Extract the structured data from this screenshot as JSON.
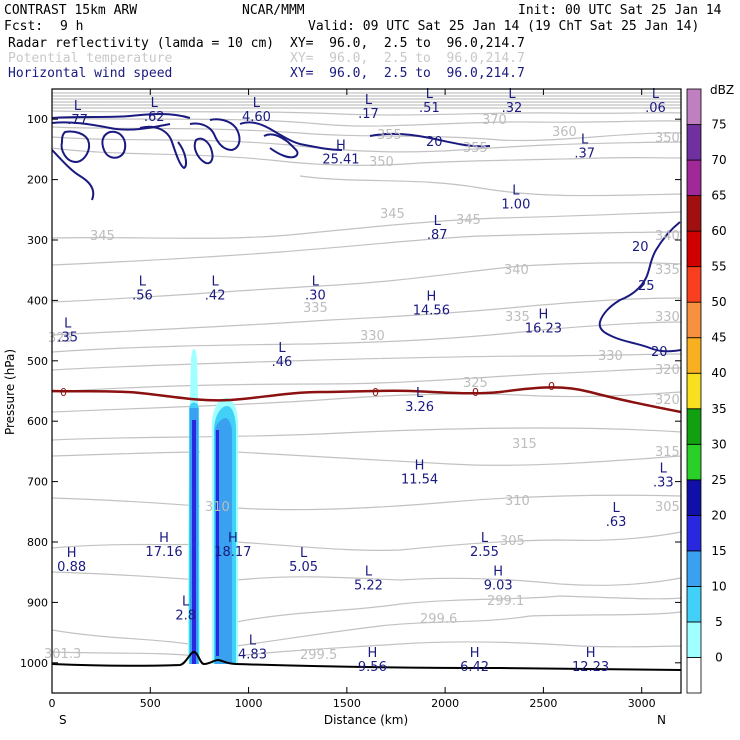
{
  "header": {
    "title": "CONTRAST 15km ARW",
    "org": "NCAR/MMM",
    "init": "Init: 00 UTC Sat 25 Jan 14",
    "fcst_label": "Fcst:",
    "fcst_value": "9 h",
    "valid": "Valid: 09 UTC Sat 25 Jan 14 (19 ChT Sat 25 Jan 14)",
    "fields": [
      {
        "name": "Radar reflectivity (lamda = 10 cm)",
        "xy": "XY=  96.0,  2.5 to  96.0,214.7"
      },
      {
        "name": "Potential temperature",
        "xy": "XY=  96.0,  2.5 to  96.0,214.7"
      },
      {
        "name": "Horizontal wind speed",
        "xy": "XY=  96.0,  2.5 to  96.0,214.7"
      }
    ]
  },
  "chart_data": {
    "type": "cross-section",
    "xlabel": "Distance (km)",
    "ylabel": "Pressure (hPa)",
    "xlim": [
      0,
      3200
    ],
    "ylim": [
      1050,
      50
    ],
    "x_ticks": [
      0,
      500,
      1000,
      1500,
      2000,
      2500,
      3000
    ],
    "y_ticks": [
      100,
      200,
      300,
      400,
      500,
      600,
      700,
      800,
      900,
      1000
    ],
    "x_end_labels": {
      "left": "S",
      "right": "N"
    },
    "colorbar": {
      "unit": "dBZ",
      "levels": [
        "0",
        "5",
        "10",
        "15",
        "20",
        "25",
        "30",
        "35",
        "40",
        "45",
        "50",
        "55",
        "60",
        "65",
        "70",
        "75"
      ],
      "colors": [
        "#ffffff",
        "#a0ffff",
        "#40d0f8",
        "#3aa0f0",
        "#2828e0",
        "#1010a8",
        "#28d028",
        "#10a010",
        "#f8e020",
        "#f8b020",
        "#f89040",
        "#f84020",
        "#d00000",
        "#a01010",
        "#a02898",
        "#7030a0",
        "#c080c0"
      ]
    },
    "potential_temperature_labels": [
      "370",
      "360",
      "355",
      "355",
      "350",
      "350",
      "345",
      "345",
      "345",
      "340",
      "340",
      "335",
      "335",
      "335",
      "330",
      "330",
      "330",
      "325",
      "325",
      "320",
      "320",
      "315",
      "315",
      "310",
      "310",
      "305",
      "305",
      "299.1",
      "299.6",
      "299.5",
      "301.3"
    ],
    "wind_speed_labels": [
      "20",
      "20",
      "25",
      "20"
    ],
    "freezing_labels": [
      "0",
      "0",
      "0",
      "0"
    ],
    "extrema": [
      {
        "kind": "L",
        "value": ".77",
        "x": 130,
        "p": 95
      },
      {
        "kind": "L",
        "value": ".62",
        "x": 520,
        "p": 90
      },
      {
        "kind": "L",
        "value": "4.60",
        "x": 1040,
        "p": 90
      },
      {
        "kind": "L",
        "value": ".17",
        "x": 1610,
        "p": 85
      },
      {
        "kind": "L",
        "value": ".51",
        "x": 1920,
        "p": 75
      },
      {
        "kind": "L",
        "value": ".32",
        "x": 2340,
        "p": 75
      },
      {
        "kind": "L",
        "value": ".06",
        "x": 3070,
        "p": 75
      },
      {
        "kind": "H",
        "value": "25.41",
        "x": 1470,
        "p": 160
      },
      {
        "kind": "L",
        "value": ".37",
        "x": 2710,
        "p": 150
      },
      {
        "kind": "L",
        "value": "1.00",
        "x": 2360,
        "p": 235
      },
      {
        "kind": "L",
        "value": ".87",
        "x": 1960,
        "p": 285
      },
      {
        "kind": "L",
        "value": ".56",
        "x": 460,
        "p": 385
      },
      {
        "kind": "L",
        "value": ".42",
        "x": 830,
        "p": 385
      },
      {
        "kind": "L",
        "value": ".30",
        "x": 1340,
        "p": 385
      },
      {
        "kind": "H",
        "value": "14.56",
        "x": 1930,
        "p": 410
      },
      {
        "kind": "H",
        "value": "16.23",
        "x": 2500,
        "p": 440
      },
      {
        "kind": "L",
        "value": ".35",
        "x": 80,
        "p": 455
      },
      {
        "kind": "L",
        "value": ".46",
        "x": 1170,
        "p": 495
      },
      {
        "kind": "L",
        "value": "3.26",
        "x": 1870,
        "p": 570
      },
      {
        "kind": "H",
        "value": "11.54",
        "x": 1870,
        "p": 690
      },
      {
        "kind": "L",
        "value": ".33",
        "x": 3110,
        "p": 695
      },
      {
        "kind": "L",
        "value": ".63",
        "x": 2870,
        "p": 760
      },
      {
        "kind": "H",
        "value": "17.16",
        "x": 570,
        "p": 810
      },
      {
        "kind": "H",
        "value": "18.17",
        "x": 920,
        "p": 810
      },
      {
        "kind": "L",
        "value": "2.55",
        "x": 2200,
        "p": 810
      },
      {
        "kind": "H",
        "value": "0.88",
        "x": 100,
        "p": 835
      },
      {
        "kind": "L",
        "value": "5.05",
        "x": 1280,
        "p": 835
      },
      {
        "kind": "L",
        "value": "5.22",
        "x": 1610,
        "p": 865
      },
      {
        "kind": "H",
        "value": "9.03",
        "x": 2270,
        "p": 865
      },
      {
        "kind": "L",
        "value": "2.8",
        "x": 680,
        "p": 915
      },
      {
        "kind": "L",
        "value": "4.83",
        "x": 1020,
        "p": 980
      },
      {
        "kind": "H",
        "value": "9.56",
        "x": 1630,
        "p": 1000
      },
      {
        "kind": "H",
        "value": "6.42",
        "x": 2150,
        "p": 1000
      },
      {
        "kind": "H",
        "value": "12.23",
        "x": 2740,
        "p": 1000
      }
    ]
  }
}
